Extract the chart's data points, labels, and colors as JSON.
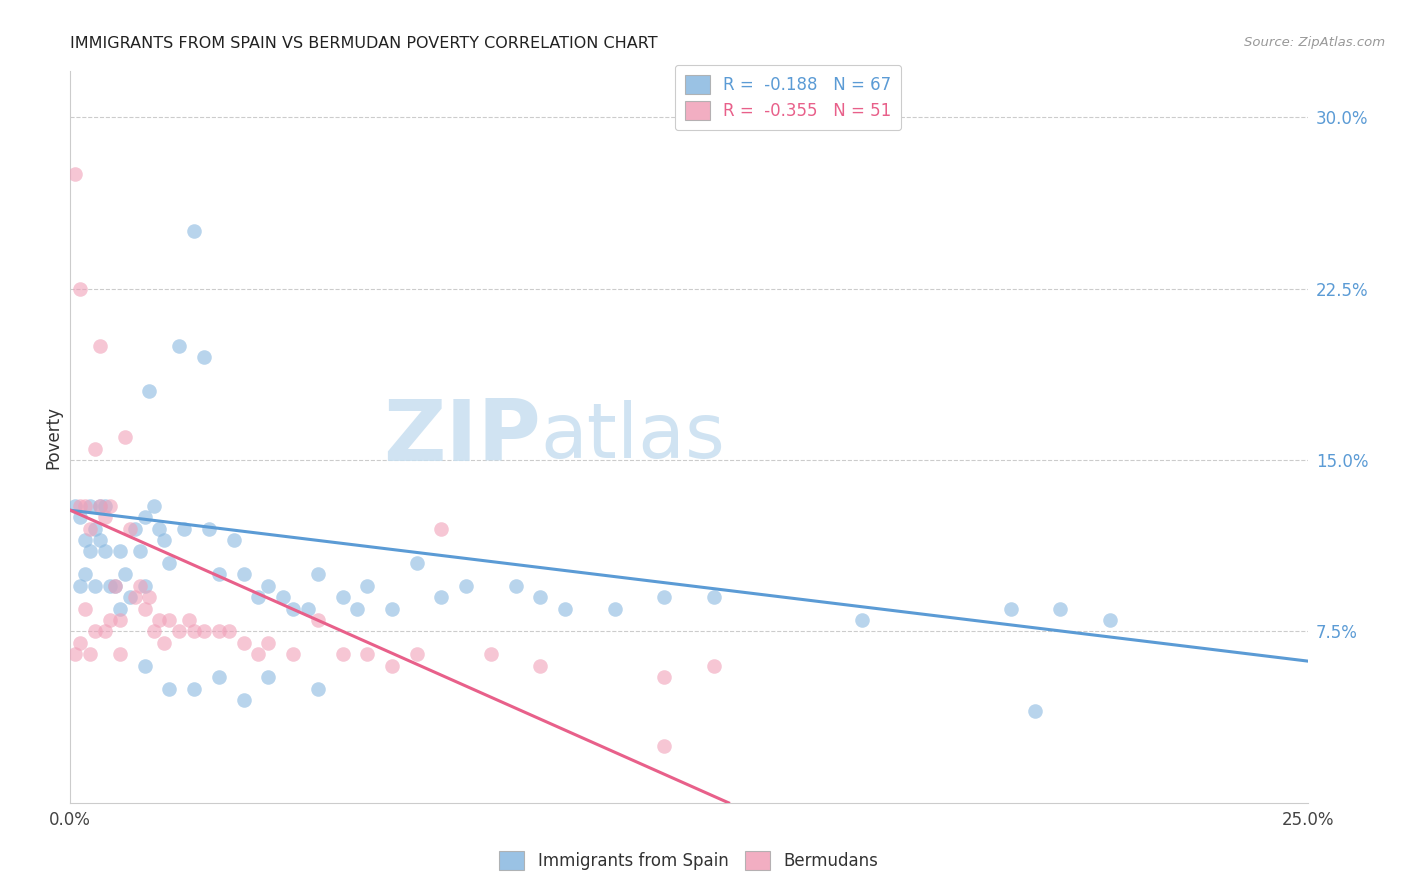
{
  "title": "IMMIGRANTS FROM SPAIN VS BERMUDAN POVERTY CORRELATION CHART",
  "source": "Source: ZipAtlas.com",
  "ylabel": "Poverty",
  "right_yticks": [
    "30.0%",
    "22.5%",
    "15.0%",
    "7.5%"
  ],
  "right_ytick_vals": [
    0.3,
    0.225,
    0.15,
    0.075
  ],
  "xmin": 0.0,
  "xmax": 0.25,
  "ymin": 0.0,
  "ymax": 0.32,
  "legend_stat": [
    {
      "label": "R =  -0.188   N = 67",
      "color": "#5b9bd5"
    },
    {
      "label": "R =  -0.355   N = 51",
      "color": "#e8608a"
    }
  ],
  "legend_labels": [
    "Immigrants from Spain",
    "Bermudans"
  ],
  "blue_color": "#89b8e0",
  "pink_color": "#f0a0b8",
  "blue_line_color": "#5b9bd5",
  "pink_line_color": "#e8608a",
  "blue_line": {
    "x0": 0.0,
    "y0": 0.128,
    "x1": 0.25,
    "y1": 0.062
  },
  "pink_line": {
    "x0": 0.0,
    "y0": 0.128,
    "x1": 0.133,
    "y1": 0.0
  },
  "scatter_blue_x": [
    0.001,
    0.002,
    0.002,
    0.003,
    0.003,
    0.004,
    0.004,
    0.005,
    0.005,
    0.006,
    0.006,
    0.007,
    0.007,
    0.008,
    0.009,
    0.01,
    0.01,
    0.011,
    0.012,
    0.013,
    0.014,
    0.015,
    0.015,
    0.016,
    0.017,
    0.018,
    0.019,
    0.02,
    0.022,
    0.023,
    0.025,
    0.027,
    0.028,
    0.03,
    0.033,
    0.035,
    0.038,
    0.04,
    0.043,
    0.045,
    0.048,
    0.05,
    0.055,
    0.058,
    0.06,
    0.065,
    0.07,
    0.075,
    0.08,
    0.09,
    0.095,
    0.1,
    0.11,
    0.12,
    0.13,
    0.16,
    0.19,
    0.195,
    0.2,
    0.21,
    0.015,
    0.02,
    0.025,
    0.03,
    0.035,
    0.04,
    0.05
  ],
  "scatter_blue_y": [
    0.13,
    0.125,
    0.095,
    0.115,
    0.1,
    0.13,
    0.11,
    0.12,
    0.095,
    0.13,
    0.115,
    0.13,
    0.11,
    0.095,
    0.095,
    0.11,
    0.085,
    0.1,
    0.09,
    0.12,
    0.11,
    0.125,
    0.095,
    0.18,
    0.13,
    0.12,
    0.115,
    0.105,
    0.2,
    0.12,
    0.25,
    0.195,
    0.12,
    0.1,
    0.115,
    0.1,
    0.09,
    0.095,
    0.09,
    0.085,
    0.085,
    0.1,
    0.09,
    0.085,
    0.095,
    0.085,
    0.105,
    0.09,
    0.095,
    0.095,
    0.09,
    0.085,
    0.085,
    0.09,
    0.09,
    0.08,
    0.085,
    0.04,
    0.085,
    0.08,
    0.06,
    0.05,
    0.05,
    0.055,
    0.045,
    0.055,
    0.05
  ],
  "scatter_pink_x": [
    0.001,
    0.001,
    0.002,
    0.002,
    0.003,
    0.003,
    0.004,
    0.005,
    0.005,
    0.006,
    0.006,
    0.007,
    0.007,
    0.008,
    0.008,
    0.009,
    0.01,
    0.01,
    0.011,
    0.012,
    0.013,
    0.014,
    0.015,
    0.016,
    0.017,
    0.018,
    0.019,
    0.02,
    0.022,
    0.024,
    0.025,
    0.027,
    0.03,
    0.032,
    0.035,
    0.038,
    0.04,
    0.045,
    0.05,
    0.055,
    0.06,
    0.065,
    0.07,
    0.075,
    0.085,
    0.095,
    0.12,
    0.13,
    0.002,
    0.004,
    0.12
  ],
  "scatter_pink_y": [
    0.275,
    0.065,
    0.225,
    0.13,
    0.13,
    0.085,
    0.12,
    0.155,
    0.075,
    0.2,
    0.13,
    0.125,
    0.075,
    0.13,
    0.08,
    0.095,
    0.08,
    0.065,
    0.16,
    0.12,
    0.09,
    0.095,
    0.085,
    0.09,
    0.075,
    0.08,
    0.07,
    0.08,
    0.075,
    0.08,
    0.075,
    0.075,
    0.075,
    0.075,
    0.07,
    0.065,
    0.07,
    0.065,
    0.08,
    0.065,
    0.065,
    0.06,
    0.065,
    0.12,
    0.065,
    0.06,
    0.055,
    0.06,
    0.07,
    0.065,
    0.025
  ]
}
